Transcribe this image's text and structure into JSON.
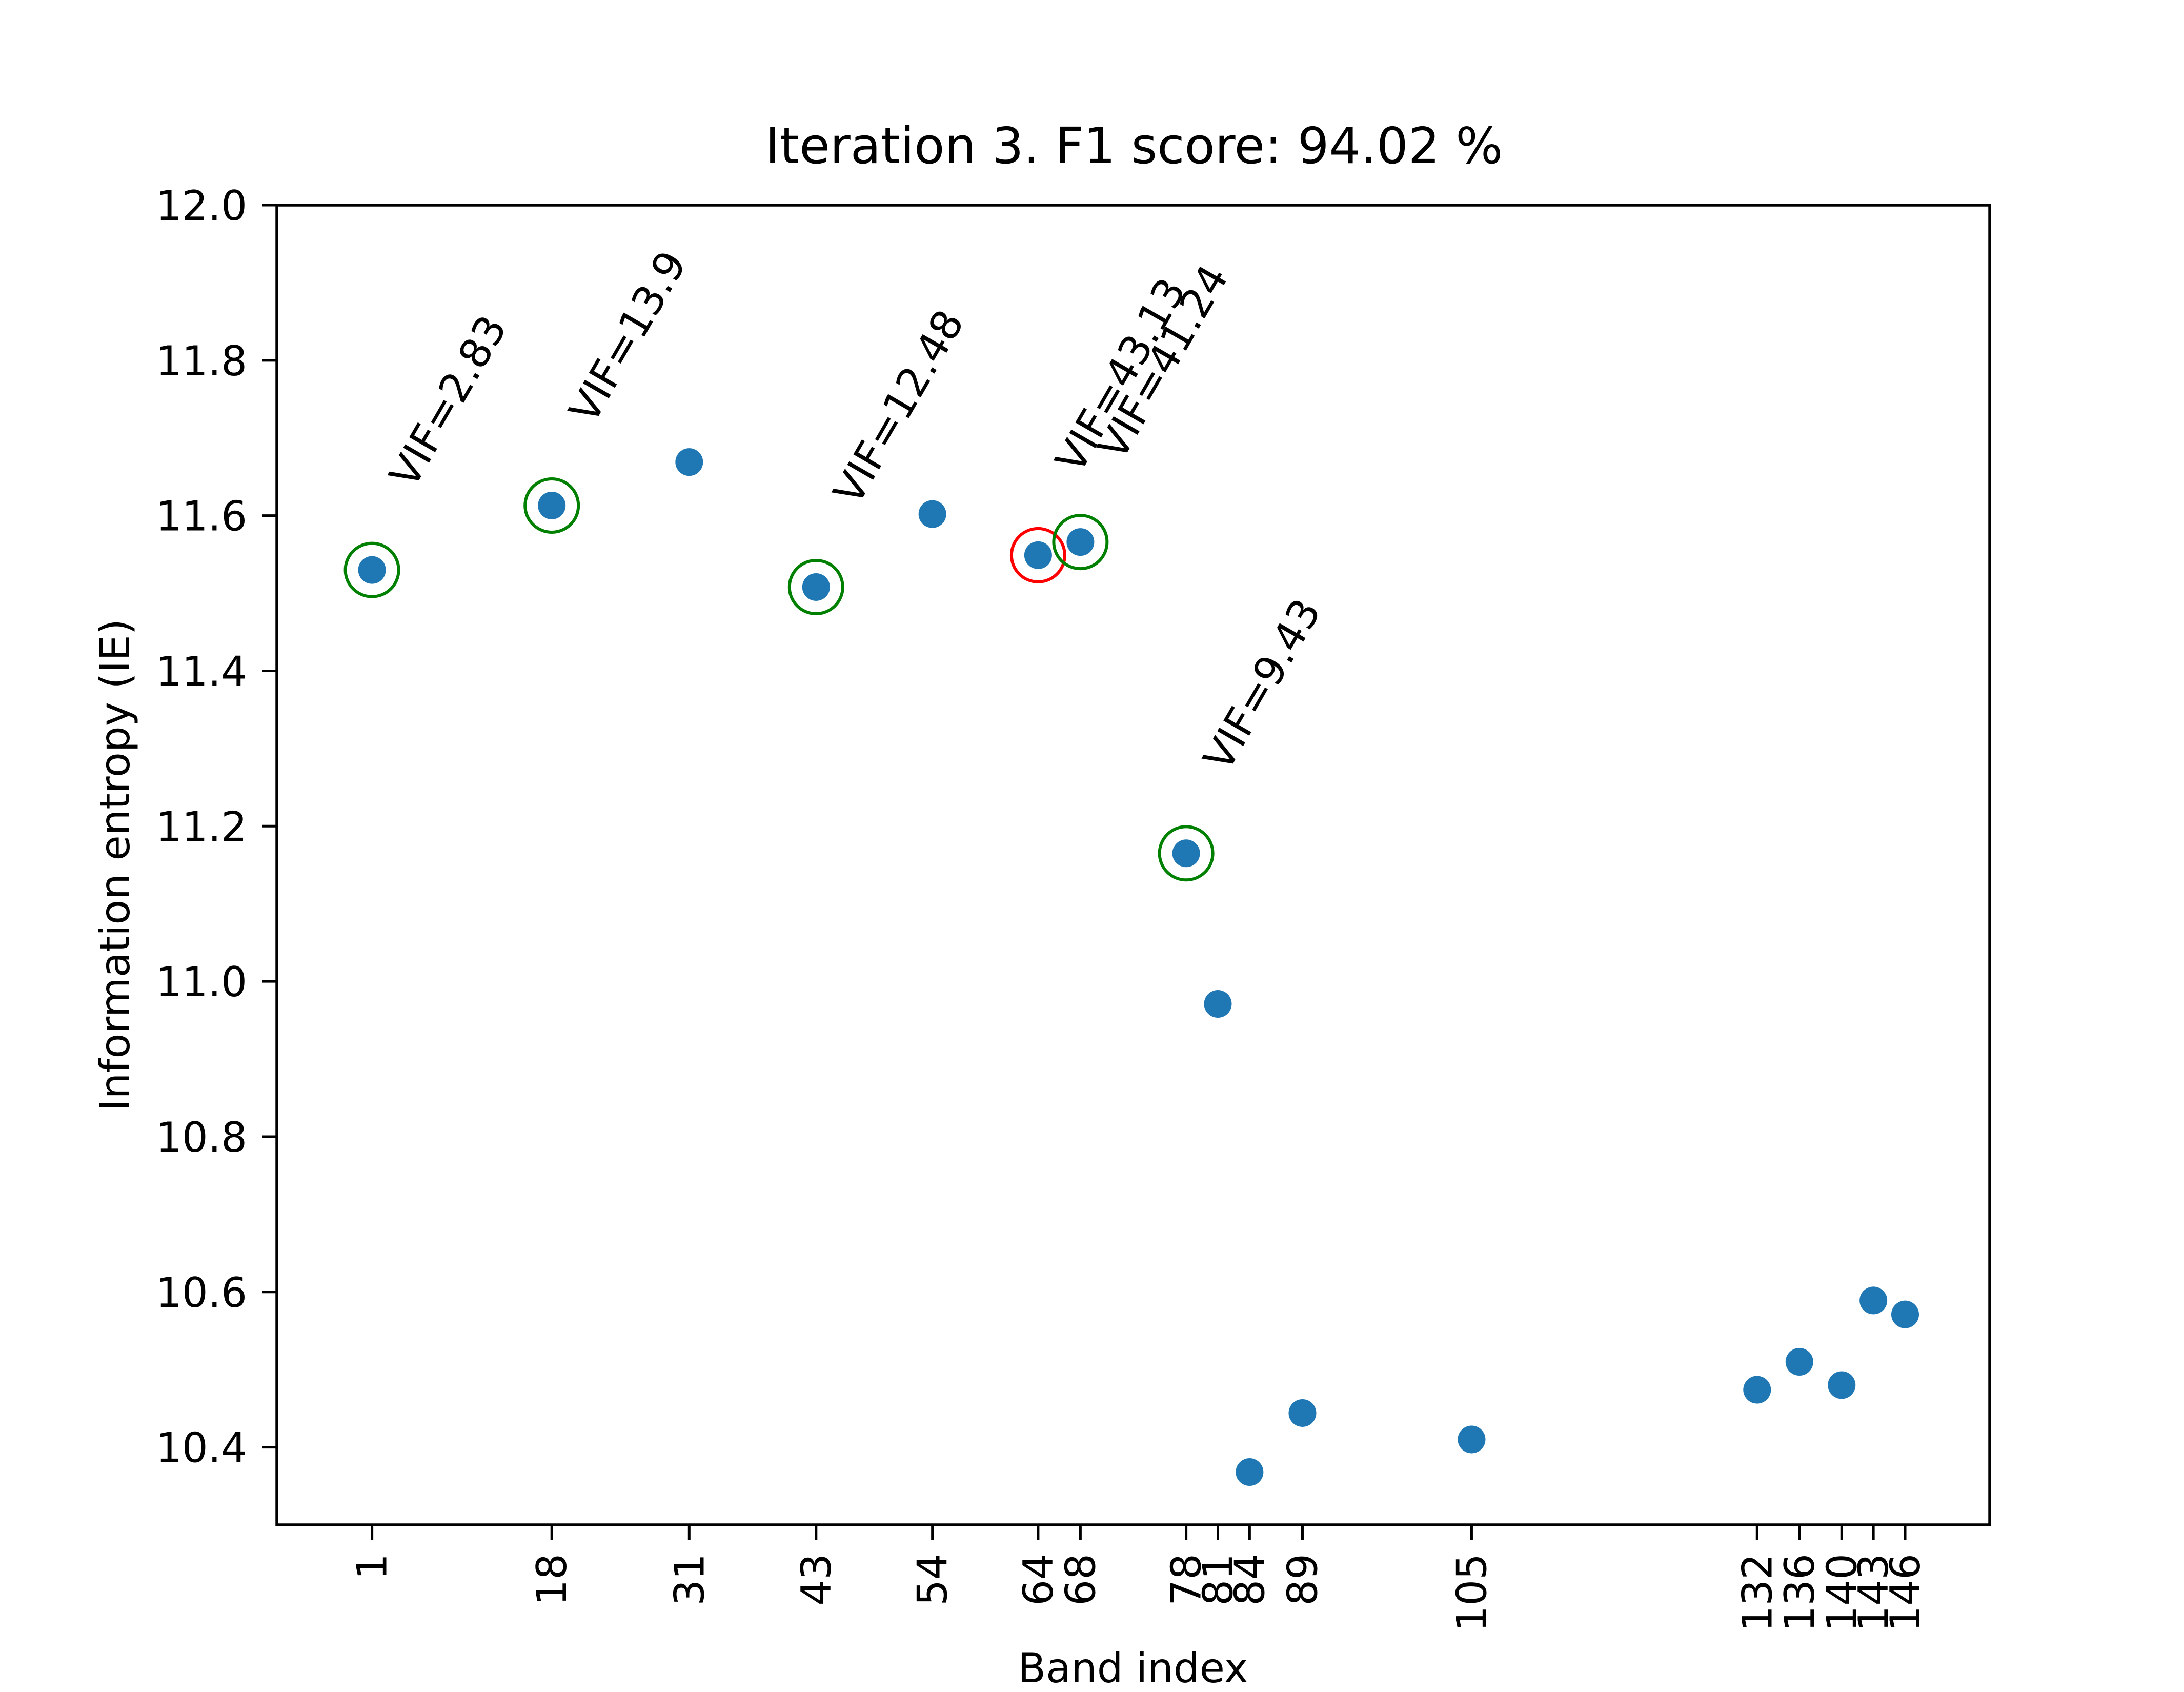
{
  "chart_data": {
    "type": "scatter",
    "title": "Iteration 3. F1 score: 94.02 %",
    "xlabel": "Band index",
    "ylabel": "Information entropy (IE)",
    "xlim": [
      -8,
      154
    ],
    "ylim": [
      10.3,
      12.0
    ],
    "grid": false,
    "x_ticks": [
      1,
      18,
      31,
      43,
      54,
      64,
      68,
      78,
      81,
      84,
      89,
      105,
      132,
      136,
      140,
      143,
      146
    ],
    "y_ticks": [
      "10.4",
      "10.6",
      "10.8",
      "11.0",
      "11.2",
      "11.4",
      "11.6",
      "11.8",
      "12.0"
    ],
    "points": [
      {
        "x": 1,
        "y": 11.53
      },
      {
        "x": 18,
        "y": 11.613
      },
      {
        "x": 31,
        "y": 11.669
      },
      {
        "x": 43,
        "y": 11.508
      },
      {
        "x": 54,
        "y": 11.602
      },
      {
        "x": 64,
        "y": 11.549
      },
      {
        "x": 68,
        "y": 11.566
      },
      {
        "x": 78,
        "y": 11.165
      },
      {
        "x": 81,
        "y": 10.971
      },
      {
        "x": 84,
        "y": 10.368
      },
      {
        "x": 89,
        "y": 10.444
      },
      {
        "x": 105,
        "y": 10.41
      },
      {
        "x": 132,
        "y": 10.474
      },
      {
        "x": 136,
        "y": 10.51
      },
      {
        "x": 140,
        "y": 10.48
      },
      {
        "x": 143,
        "y": 10.589
      },
      {
        "x": 146,
        "y": 10.571
      }
    ],
    "highlights": [
      {
        "x": 1,
        "y": 11.53,
        "status": "selected",
        "color": "#008000",
        "label": "VIF=2.83"
      },
      {
        "x": 18,
        "y": 11.613,
        "status": "selected",
        "color": "#008000",
        "label": "VIF=13.9"
      },
      {
        "x": 43,
        "y": 11.508,
        "status": "selected",
        "color": "#008000",
        "label": "VIF=12.48"
      },
      {
        "x": 64,
        "y": 11.549,
        "status": "removed",
        "color": "#ff0000",
        "label": "VIF=43.13"
      },
      {
        "x": 68,
        "y": 11.566,
        "status": "selected",
        "color": "#008000",
        "label": "VIF=41.24"
      },
      {
        "x": 78,
        "y": 11.165,
        "status": "selected",
        "color": "#008000",
        "label": "VIF=9.43"
      }
    ],
    "colors": {
      "points": "#1f77b4",
      "selected": "#008000",
      "removed": "#ff0000"
    }
  }
}
